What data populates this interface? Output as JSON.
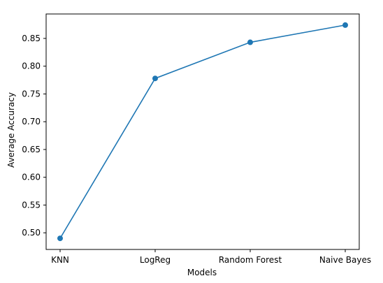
{
  "chart_data": {
    "type": "line",
    "title": "",
    "xlabel": "Models",
    "ylabel": "Average Accuracy",
    "categories": [
      "KNN",
      "LogReg",
      "Random Forest",
      "Naive Bayes"
    ],
    "series": [
      {
        "values": [
          0.49,
          0.778,
          0.843,
          0.874
        ]
      }
    ],
    "ylim": [
      0.47,
      0.894
    ],
    "yticks": [
      0.5,
      0.55,
      0.6,
      0.65,
      0.7,
      0.75,
      0.8,
      0.85
    ],
    "ytick_labels": [
      "0.50",
      "0.55",
      "0.60",
      "0.65",
      "0.70",
      "0.75",
      "0.80",
      "0.85"
    ],
    "grid": false,
    "line_color": "#1f77b4",
    "marker": "circle"
  }
}
